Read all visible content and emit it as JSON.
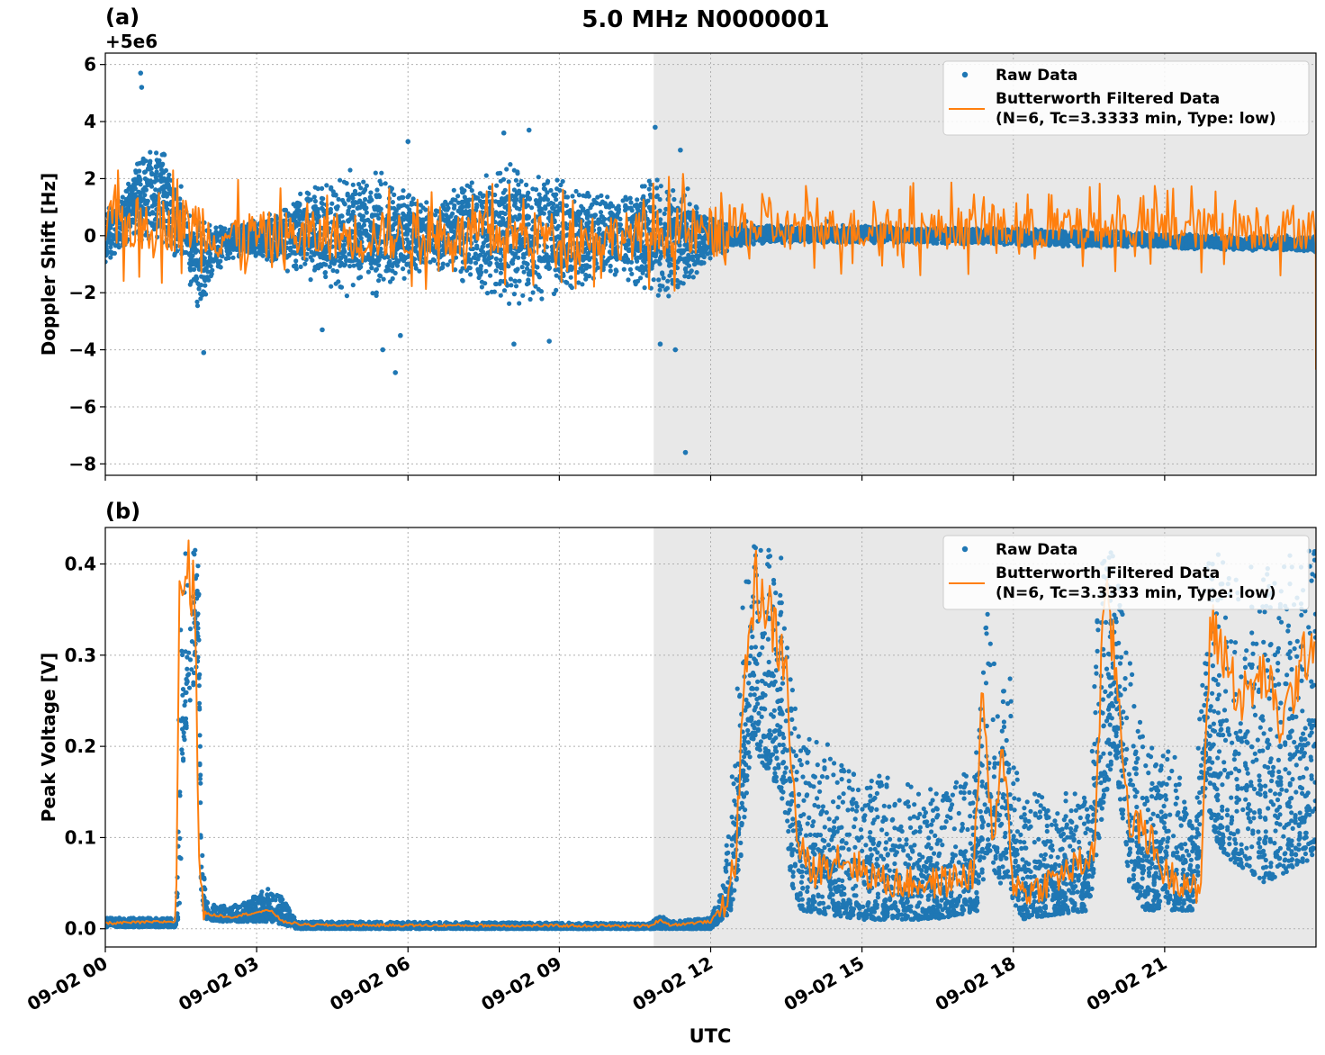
{
  "figure": {
    "title": "5.0 MHz N0000001",
    "xlabel": "UTC",
    "x_tick_labels": [
      "09-02 00",
      "09-02 03",
      "09-02 06",
      "09-02 09",
      "09-02 12",
      "09-02 15",
      "09-02 18",
      "09-02 21"
    ],
    "colors": {
      "raw": "#1f77b4",
      "filtered": "#ff7f0e",
      "shade": "#e8e8e8",
      "grid": "#b0b0b0"
    }
  },
  "chart_data": [
    {
      "type": "scatter",
      "panel_label": "(a)",
      "ylabel": "Doppler Shift [Hz]",
      "offset_text": "+5e6",
      "x_unit": "hours UTC on 09-02",
      "xlim": [
        0,
        24
      ],
      "ylim": [
        -8.4,
        6.4
      ],
      "x_ticks": [
        0,
        3,
        6,
        9,
        12,
        15,
        18,
        21
      ],
      "y_ticks": [
        -8,
        -6,
        -4,
        -2,
        0,
        2,
        4,
        6
      ],
      "y_tick_labels": [
        "−8",
        "−6",
        "−4",
        "−2",
        "0",
        "2",
        "4",
        "6"
      ],
      "grid": true,
      "legend": {
        "placement": "top-right",
        "entries": [
          "Raw Data",
          "Butterworth Filtered Data",
          "(N=6, Tc=3.3333 min, Type: low)"
        ]
      },
      "shaded_region": [
        10.87,
        24
      ],
      "series": [
        {
          "name": "Raw Data",
          "style": "points",
          "envelope": {
            "x": [
              0,
              0.3,
              0.5,
              0.7,
              0.9,
              1.1,
              1.3,
              1.5,
              1.7,
              1.9,
              2.1,
              2.5,
              3.0,
              3.5,
              4.0,
              4.5,
              5.0,
              5.5,
              6.0,
              6.5,
              7.0,
              7.5,
              8.0,
              8.5,
              9.0,
              9.5,
              10.0,
              10.5,
              11.0,
              11.5,
              12.0,
              12.5,
              13,
              14,
              15,
              16,
              17,
              18,
              19,
              20,
              21,
              22,
              23,
              24
            ],
            "upper": [
              1.0,
              1.5,
              2.2,
              3.0,
              3.8,
              3.4,
              2.6,
              1.8,
              1.0,
              0.6,
              0.5,
              0.5,
              0.6,
              1.0,
              1.8,
              2.4,
              2.5,
              2.3,
              1.6,
              1.2,
              1.8,
              2.5,
              2.8,
              2.6,
              2.2,
              1.8,
              1.6,
              2.0,
              2.2,
              1.8,
              0.8,
              0.45,
              0.4,
              0.35,
              0.4,
              0.3,
              0.3,
              0.3,
              0.2,
              0.2,
              0.1,
              0.05,
              0.0,
              0.0
            ],
            "lower": [
              -1.2,
              -0.6,
              -0.3,
              -0.4,
              -0.5,
              -0.6,
              -0.8,
              -1.0,
              -2.0,
              -3.0,
              -1.5,
              -0.8,
              -0.8,
              -1.2,
              -1.6,
              -2.0,
              -2.4,
              -2.2,
              -1.6,
              -1.2,
              -1.8,
              -2.2,
              -2.6,
              -2.6,
              -2.2,
              -1.8,
              -1.5,
              -2.0,
              -2.4,
              -2.0,
              -0.9,
              -0.4,
              -0.3,
              -0.25,
              -0.25,
              -0.3,
              -0.3,
              -0.35,
              -0.4,
              -0.4,
              -0.45,
              -0.5,
              -0.55,
              -0.6
            ]
          },
          "outliers": [
            [
              0.7,
              5.7
            ],
            [
              0.72,
              5.2
            ],
            [
              1.95,
              -4.1
            ],
            [
              4.3,
              -3.3
            ],
            [
              5.5,
              -4.0
            ],
            [
              5.75,
              -4.8
            ],
            [
              5.85,
              -3.5
            ],
            [
              6.0,
              3.3
            ],
            [
              7.9,
              3.6
            ],
            [
              8.1,
              -3.8
            ],
            [
              8.4,
              3.7
            ],
            [
              8.8,
              -3.7
            ],
            [
              10.9,
              3.8
            ],
            [
              11.0,
              -3.8
            ],
            [
              11.3,
              -4.0
            ],
            [
              11.5,
              -7.6
            ],
            [
              11.4,
              3.0
            ],
            [
              12.7,
              0.5
            ],
            [
              14.3,
              0.5
            ]
          ]
        },
        {
          "name": "Butterworth Filtered Data",
          "style": "line",
          "noise": [
            {
              "from": 0,
              "to": 2.0,
              "amp": 1.6,
              "base": 0.4
            },
            {
              "from": 2.0,
              "to": 10.87,
              "amp": 1.4,
              "base": 0.0
            },
            {
              "from": 10.87,
              "to": 12.3,
              "amp": 1.5,
              "base": 0.1
            },
            {
              "from": 12.3,
              "to": 24,
              "amp": 1.2,
              "base": 0.25
            }
          ],
          "end_value": -4.7
        }
      ]
    },
    {
      "type": "scatter",
      "panel_label": "(b)",
      "ylabel": "Peak Voltage [V]",
      "x_unit": "hours UTC on 09-02",
      "xlim": [
        0,
        24
      ],
      "ylim": [
        -0.02,
        0.44
      ],
      "x_ticks": [
        0,
        3,
        6,
        9,
        12,
        15,
        18,
        21
      ],
      "y_ticks": [
        0.0,
        0.1,
        0.2,
        0.3,
        0.4
      ],
      "y_tick_labels": [
        "0.0",
        "0.1",
        "0.2",
        "0.3",
        "0.4"
      ],
      "grid": true,
      "legend": {
        "placement": "top-right",
        "entries": [
          "Raw Data",
          "Butterworth Filtered Data",
          "(N=6, Tc=3.3333 min, Type: low)"
        ]
      },
      "shaded_region": [
        10.87,
        24
      ],
      "series": [
        {
          "name": "Raw Data",
          "style": "points",
          "envelope": {
            "x": [
              0,
              1.4,
              1.5,
              1.55,
              1.85,
              1.9,
              2.0,
              2.3,
              2.8,
              3.2,
              3.5,
              3.8,
              10.8,
              11.0,
              11.2,
              12.0,
              12.25,
              12.4,
              12.6,
              12.8,
              13.4,
              13.6,
              13.8,
              15,
              16.5,
              17.3,
              17.5,
              17.7,
              17.9,
              18.1,
              19.5,
              19.7,
              20.0,
              20.3,
              20.6,
              21.3,
              21.6,
              21.8,
              22.0,
              22.2,
              23,
              24
            ],
            "upper": [
              0.012,
              0.012,
              0.42,
              0.42,
              0.42,
              0.1,
              0.03,
              0.025,
              0.03,
              0.045,
              0.035,
              0.008,
              0.006,
              0.015,
              0.008,
              0.012,
              0.05,
              0.15,
              0.35,
              0.42,
              0.42,
              0.3,
              0.22,
              0.18,
              0.15,
              0.2,
              0.38,
              0.25,
              0.3,
              0.15,
              0.15,
              0.4,
              0.42,
              0.3,
              0.2,
              0.2,
              0.1,
              0.4,
              0.42,
              0.4,
              0.4,
              0.42
            ],
            "lower": [
              0.002,
              0.002,
              0.02,
              0.2,
              0.3,
              0.03,
              0.01,
              0.008,
              0.008,
              0.008,
              0.005,
              0.0,
              0.0,
              0.0,
              0.0,
              0.0,
              0.01,
              0.02,
              0.08,
              0.2,
              0.15,
              0.05,
              0.02,
              0.01,
              0.01,
              0.02,
              0.08,
              0.05,
              0.05,
              0.01,
              0.02,
              0.1,
              0.2,
              0.05,
              0.02,
              0.02,
              0.02,
              0.15,
              0.1,
              0.08,
              0.05,
              0.08
            ]
          }
        },
        {
          "name": "Butterworth Filtered Data",
          "style": "line",
          "points": {
            "x": [
              0,
              1.4,
              1.48,
              1.55,
              1.65,
              1.78,
              1.85,
              1.92,
              2.0,
              2.5,
              3.0,
              3.3,
              3.5,
              4.0,
              10.8,
              11.0,
              11.2,
              12.0,
              12.3,
              12.5,
              12.7,
              12.9,
              13.2,
              13.5,
              13.7,
              14.0,
              14.5,
              15.5,
              16.5,
              17.2,
              17.4,
              17.6,
              17.8,
              18.0,
              18.3,
              19.0,
              19.6,
              19.8,
              20.0,
              20.3,
              20.7,
              21.0,
              21.5,
              21.7,
              21.9,
              22.2,
              22.5,
              23.0,
              23.3,
              23.6,
              24
            ],
            "y": [
              0.006,
              0.008,
              0.4,
              0.38,
              0.39,
              0.37,
              0.1,
              0.03,
              0.016,
              0.013,
              0.018,
              0.02,
              0.008,
              0.004,
              0.003,
              0.01,
              0.004,
              0.008,
              0.03,
              0.08,
              0.3,
              0.38,
              0.34,
              0.28,
              0.1,
              0.06,
              0.08,
              0.05,
              0.05,
              0.06,
              0.26,
              0.08,
              0.2,
              0.05,
              0.04,
              0.06,
              0.08,
              0.37,
              0.3,
              0.12,
              0.1,
              0.06,
              0.05,
              0.03,
              0.33,
              0.3,
              0.25,
              0.28,
              0.22,
              0.27,
              0.33
            ]
          },
          "jitter": 0.015
        }
      ]
    }
  ]
}
